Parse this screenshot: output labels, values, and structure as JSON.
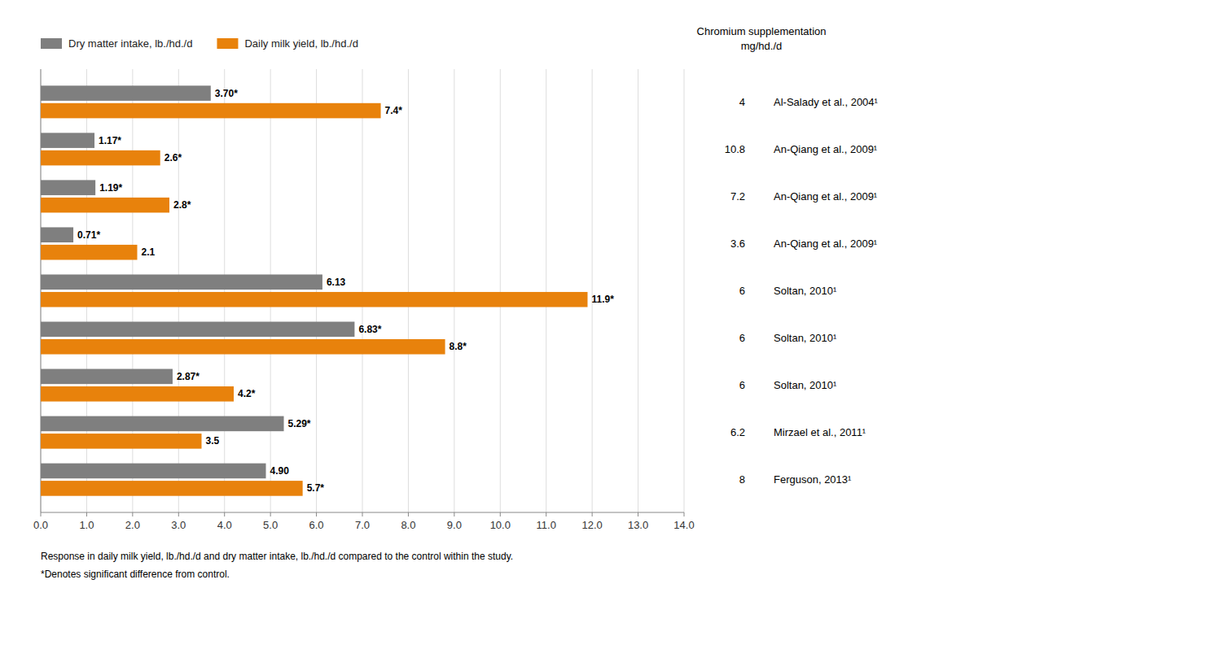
{
  "chart_data": {
    "type": "bar",
    "orientation": "horizontal",
    "categories": [
      "Al-Salady et al., 2004¹",
      "An-Qiang et al., 2009¹",
      "An-Qiang et al., 2009¹",
      "An-Qiang et al., 2009¹",
      "Soltan, 2010¹",
      "Soltan, 2010¹",
      "Soltan, 2010¹",
      "Mirzael et al., 2011¹",
      "Ferguson, 2013¹"
    ],
    "series": [
      {
        "name": "Dry matter intake, lb./hd./d",
        "color": "#7f7f7f",
        "values": [
          3.7,
          1.17,
          1.19,
          0.71,
          6.13,
          6.83,
          2.87,
          5.29,
          4.9
        ],
        "value_labels": [
          "3.70*",
          "1.17*",
          "1.19*",
          "0.71*",
          "6.13",
          "6.83*",
          "2.87*",
          "5.29*",
          "4.90"
        ]
      },
      {
        "name": "Daily milk yield, lb./hd./d",
        "color": "#E8820C",
        "values": [
          7.4,
          2.6,
          2.8,
          2.1,
          11.9,
          8.8,
          4.2,
          3.5,
          5.7
        ],
        "value_labels": [
          "7.4*",
          "2.6*",
          "2.8*",
          "2.1",
          "11.9*",
          "8.8*",
          "4.2*",
          "3.5",
          "5.7*"
        ]
      }
    ],
    "annotations": [
      "Chromium supplementation",
      "mg/hd./d",
      "4",
      "10.8",
      "7.2",
      "3.6",
      "6",
      "6",
      "6",
      "6.2",
      "8",
      "Response in daily milk yield, lb./hd./d and dry matter intake, lb./hd./d compared to the control within the study.",
      "*Denotes significant difference from control."
    ],
    "xlim": [
      0,
      14.0
    ],
    "xticks": [
      {
        "value": 0.0,
        "label": "0.0"
      },
      {
        "value": 1.0,
        "label": "1.0"
      },
      {
        "value": 2.0,
        "label": "2.0"
      },
      {
        "value": 3.0,
        "label": "3.0"
      },
      {
        "value": 4.0,
        "label": "4.0"
      },
      {
        "value": 5.0,
        "label": "5.0"
      },
      {
        "value": 6.0,
        "label": "6.0"
      },
      {
        "value": 7.0,
        "label": "7.0"
      },
      {
        "value": 8.0,
        "label": "8.0"
      },
      {
        "value": 9.0,
        "label": "9.0"
      },
      {
        "value": 10.0,
        "label": "10.0"
      },
      {
        "value": 11.0,
        "label": "11.0"
      },
      {
        "value": 12.0,
        "label": "12.0"
      },
      {
        "value": 13.0,
        "label": "13.0"
      },
      {
        "value": 14.0,
        "label": "14.0"
      }
    ],
    "grid": true,
    "legend": "top-left",
    "data_labels": true
  }
}
